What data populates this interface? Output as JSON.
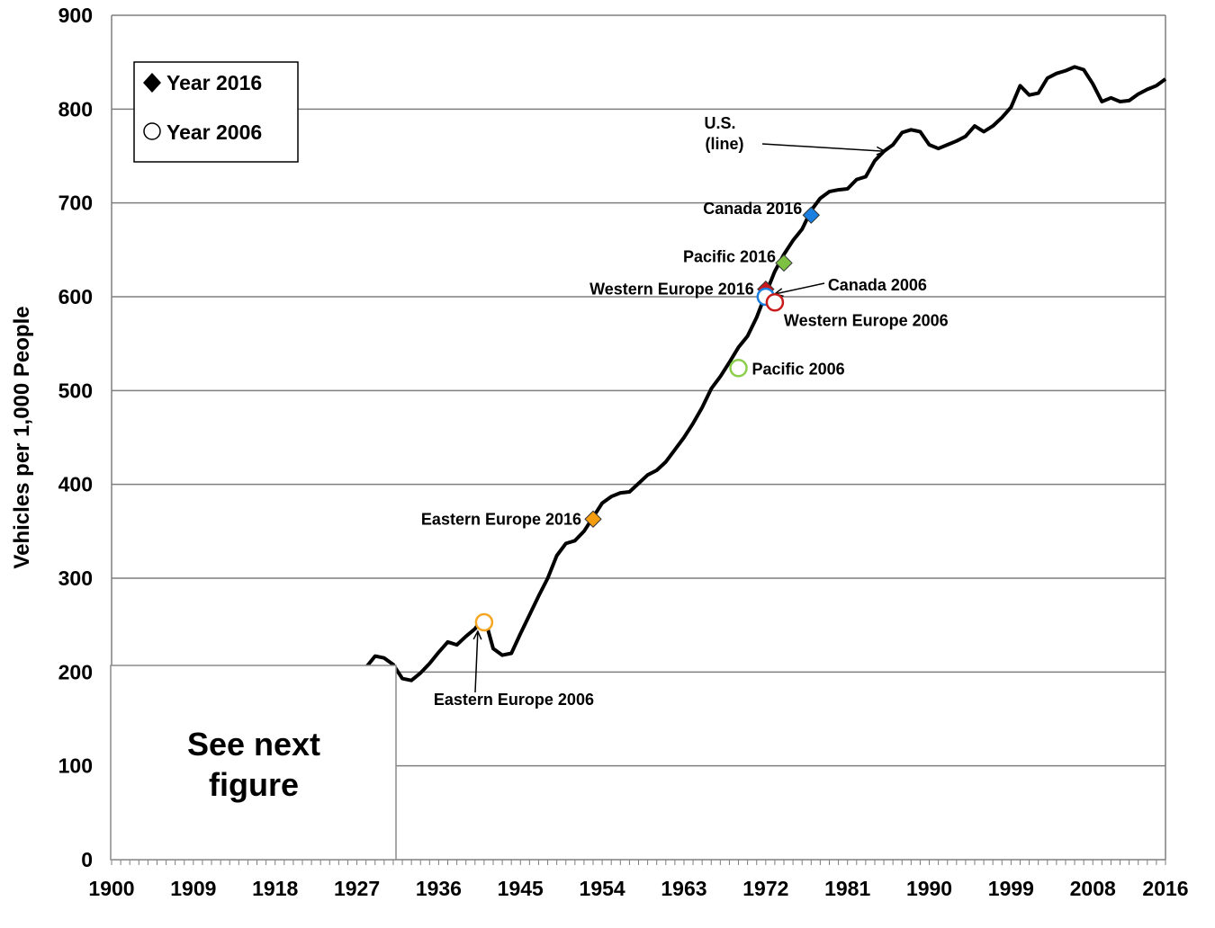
{
  "chart_data": {
    "type": "line",
    "title": "",
    "xlabel": "",
    "ylabel": "Vehicles per 1,000 People",
    "xlim": [
      1900,
      2016
    ],
    "ylim": [
      0,
      900
    ],
    "x_ticks": [
      "1900",
      "1909",
      "1918",
      "1927",
      "1936",
      "1945",
      "1954",
      "1963",
      "1972",
      "1981",
      "1990",
      "1999",
      "2008",
      "2016"
    ],
    "y_ticks": [
      "0",
      "100",
      "200",
      "300",
      "400",
      "500",
      "600",
      "700",
      "800",
      "900"
    ],
    "grid": true,
    "series": [
      {
        "name": "U.S.",
        "x": [
          1928,
          1929,
          1930,
          1931,
          1932,
          1933,
          1934,
          1935,
          1936,
          1937,
          1938,
          1939,
          1940,
          1941,
          1942,
          1943,
          1944,
          1945,
          1946,
          1947,
          1948,
          1949,
          1950,
          1951,
          1952,
          1953,
          1954,
          1955,
          1956,
          1957,
          1958,
          1959,
          1960,
          1961,
          1962,
          1963,
          1964,
          1965,
          1966,
          1967,
          1968,
          1969,
          1970,
          1971,
          1972,
          1973,
          1974,
          1975,
          1976,
          1977,
          1978,
          1979,
          1980,
          1981,
          1982,
          1983,
          1984,
          1985,
          1986,
          1987,
          1988,
          1989,
          1990,
          1991,
          1992,
          1993,
          1994,
          1995,
          1996,
          1997,
          1998,
          1999,
          2000,
          2001,
          2002,
          2003,
          2004,
          2005,
          2006,
          2007,
          2008,
          2009,
          2010,
          2011,
          2012,
          2013,
          2014,
          2015,
          2016
        ],
        "y": [
          205,
          217,
          215,
          208,
          193,
          191,
          199,
          209,
          221,
          232,
          229,
          238,
          246,
          260,
          225,
          218,
          220,
          241,
          261,
          281,
          300,
          324,
          337,
          340,
          350,
          365,
          380,
          387,
          391,
          392,
          401,
          410,
          415,
          424,
          437,
          450,
          465,
          482,
          502,
          515,
          530,
          546,
          558,
          578,
          603,
          627,
          645,
          660,
          672,
          692,
          705,
          712,
          714,
          715,
          725,
          728,
          745,
          755,
          762,
          775,
          778,
          776,
          762,
          758,
          762,
          766,
          771,
          782,
          776,
          782,
          791,
          802,
          825,
          815,
          817,
          833,
          838,
          841,
          845,
          842,
          827,
          808,
          812,
          808,
          809,
          816,
          821,
          825,
          832
        ]
      }
    ],
    "points": [
      {
        "label": "Eastern Europe 2016",
        "x": 1953,
        "y": 363,
        "marker": "diamond",
        "color": "#f59d0c"
      },
      {
        "label": "Canada 2016",
        "x": 1977,
        "y": 687,
        "marker": "diamond",
        "color": "#1a7fe0"
      },
      {
        "label": "Pacific 2016",
        "x": 1974,
        "y": 636,
        "marker": "diamond",
        "color": "#7dc142"
      },
      {
        "label": "Western Europe 2016",
        "x": 1972,
        "y": 608,
        "marker": "diamond",
        "color": "#c81c1c"
      },
      {
        "label": "Canada 2006",
        "x": 1972,
        "y": 600,
        "marker": "circle",
        "color": "#1a7fe0"
      },
      {
        "label": "Western Europe 2006",
        "x": 1973,
        "y": 594,
        "marker": "circle",
        "color": "#c81c1c"
      },
      {
        "label": "Pacific 2006",
        "x": 1969,
        "y": 524,
        "marker": "circle",
        "color": "#8ccf4d"
      },
      {
        "label": "Eastern Europe 2006",
        "x": 1941,
        "y": 253,
        "marker": "circle",
        "color": "#f5a623"
      }
    ],
    "annotations": [
      {
        "id": "us",
        "line1": "U.S.",
        "line2": "(line)"
      }
    ],
    "legend": {
      "position": "top-left",
      "items": [
        {
          "label": "Year 2016",
          "marker": "diamond"
        },
        {
          "label": "Year 2006",
          "marker": "circle"
        }
      ]
    },
    "inset_note": {
      "line1": "See next",
      "line2": "figure",
      "covers_range_below": 200
    }
  }
}
